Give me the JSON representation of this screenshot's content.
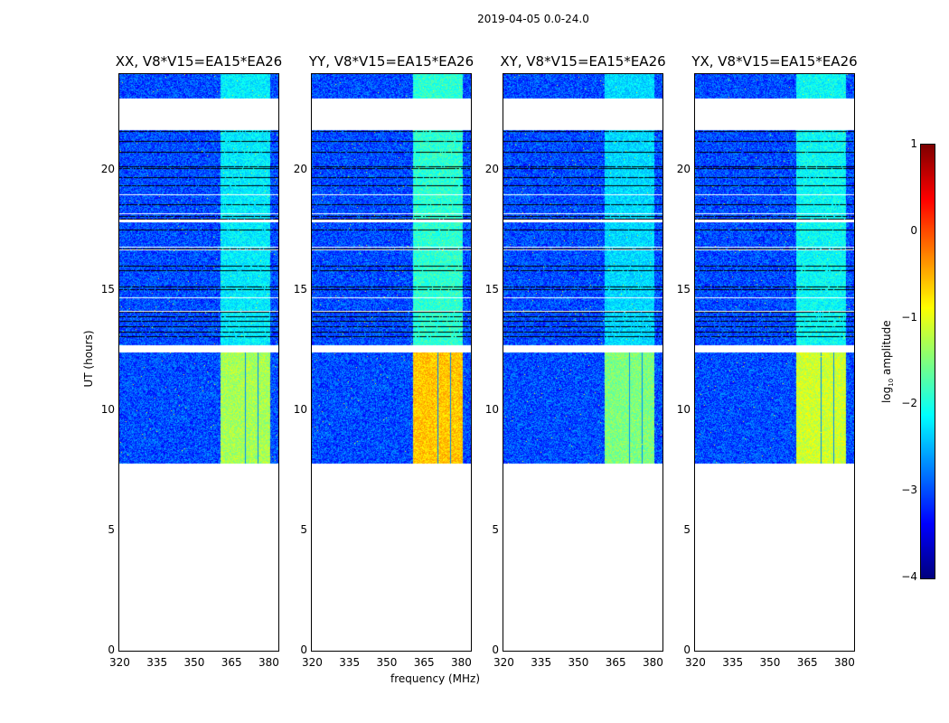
{
  "chart_data": {
    "type": "heatmap",
    "title": "2019-04-05 0.0-24.0",
    "xlabel": "frequency (MHz)",
    "ylabel": "UT (hours)",
    "xlim": [
      320,
      384
    ],
    "ylim": [
      0,
      24
    ],
    "xticks": [
      "320",
      "335",
      "350",
      "365",
      "380"
    ],
    "xtick_values": [
      320,
      335,
      350,
      365,
      380
    ],
    "yticks": [
      "0",
      "5",
      "10",
      "15",
      "20"
    ],
    "ytick_values": [
      0,
      5,
      10,
      15,
      20
    ],
    "panels": [
      {
        "title": "XX, V8*V15=EA15*EA26",
        "band_level_low": -1.3,
        "band_level_high": -2.2
      },
      {
        "title": "YY, V8*V15=EA15*EA26",
        "band_level_low": -0.6,
        "band_level_high": -1.9
      },
      {
        "title": "XY, V8*V15=EA15*EA26",
        "band_level_low": -1.5,
        "band_level_high": -2.3
      },
      {
        "title": "YX, V8*V15=EA15*EA26",
        "band_level_low": -1.1,
        "band_level_high": -2.1
      }
    ],
    "background_level": -3.0,
    "data_time_range": [
      7.8,
      24
    ],
    "blank_ranges": [
      [
        21.7,
        23.0
      ],
      [
        12.45,
        12.75
      ]
    ],
    "bright_band_mhz": [
      360.5,
      380.5
    ],
    "colorbar": {
      "label": "log10 amplitude",
      "label_main": "log",
      "label_sub": "10",
      "label_rest": " amplitude",
      "min": -4,
      "max": 1,
      "ticks": [
        "1",
        "0",
        "−1",
        "−2",
        "−3",
        "−4"
      ],
      "tick_values": [
        1,
        0,
        -1,
        -2,
        -3,
        -4
      ],
      "colormap": "jet"
    }
  }
}
